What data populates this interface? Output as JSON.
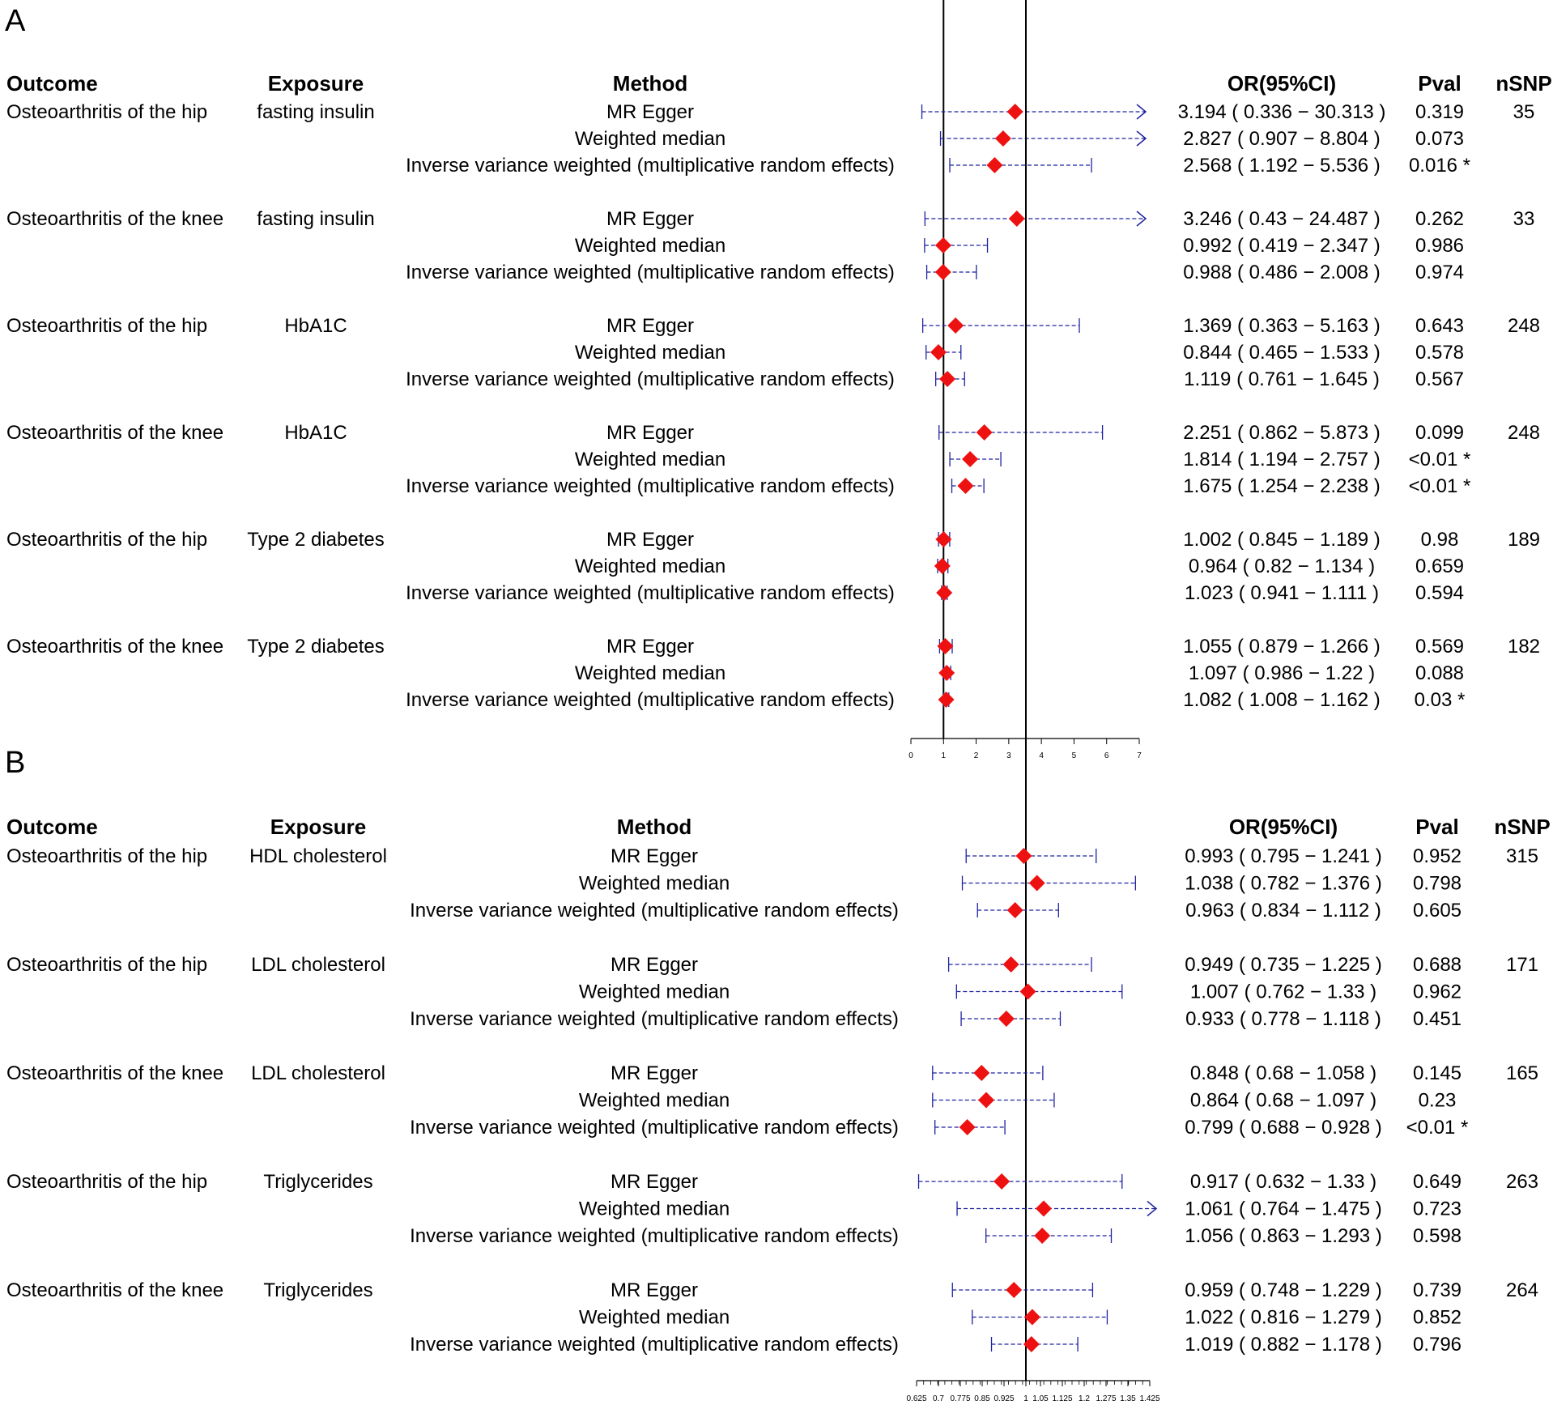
{
  "colors": {
    "marker": "#ee1111",
    "ci_line": "#1e22a0",
    "axis": "#000000"
  },
  "chart_data": [
    {
      "type": "forest",
      "panel_label": "A",
      "headers": {
        "outcome": "Outcome",
        "exposure": "Exposure",
        "method": "Method",
        "or": "OR(95%CI)",
        "pval": "Pval",
        "nsnp": "nSNP"
      },
      "axis": {
        "xlim": [
          0,
          7
        ],
        "reference_line": 1,
        "ticks": [
          0,
          1,
          2,
          3,
          4,
          5,
          6,
          7
        ],
        "tick_labels": [
          "0",
          "1",
          "2",
          "3",
          "4",
          "5",
          "6",
          "7"
        ]
      },
      "groups": [
        {
          "outcome": "Osteoarthritis of the hip",
          "exposure": "fasting insulin",
          "nsnp": "35",
          "rows": [
            {
              "method": "MR Egger",
              "or": 3.194,
              "lo": 0.336,
              "hi": 30.313,
              "ci_text": "3.194 ( 0.336 − 30.313 )",
              "pval": "0.319"
            },
            {
              "method": "Weighted median",
              "or": 2.827,
              "lo": 0.907,
              "hi": 8.804,
              "ci_text": "2.827 ( 0.907 − 8.804 )",
              "pval": "0.073"
            },
            {
              "method": "Inverse variance weighted (multiplicative random effects)",
              "or": 2.568,
              "lo": 1.192,
              "hi": 5.536,
              "ci_text": "2.568 ( 1.192 − 5.536 )",
              "pval": "0.016 *"
            }
          ]
        },
        {
          "outcome": "Osteoarthritis of the knee",
          "exposure": "fasting insulin",
          "nsnp": "33",
          "rows": [
            {
              "method": "MR Egger",
              "or": 3.246,
              "lo": 0.43,
              "hi": 24.487,
              "ci_text": "3.246 ( 0.43 − 24.487 )",
              "pval": "0.262"
            },
            {
              "method": "Weighted median",
              "or": 0.992,
              "lo": 0.419,
              "hi": 2.347,
              "ci_text": "0.992 ( 0.419 − 2.347 )",
              "pval": "0.986"
            },
            {
              "method": "Inverse variance weighted (multiplicative random effects)",
              "or": 0.988,
              "lo": 0.486,
              "hi": 2.008,
              "ci_text": "0.988 ( 0.486 − 2.008 )",
              "pval": "0.974"
            }
          ]
        },
        {
          "outcome": "Osteoarthritis of the hip",
          "exposure": "HbA1C",
          "nsnp": "248",
          "rows": [
            {
              "method": "MR Egger",
              "or": 1.369,
              "lo": 0.363,
              "hi": 5.163,
              "ci_text": "1.369 ( 0.363 − 5.163 )",
              "pval": "0.643"
            },
            {
              "method": "Weighted median",
              "or": 0.844,
              "lo": 0.465,
              "hi": 1.533,
              "ci_text": "0.844 ( 0.465 − 1.533 )",
              "pval": "0.578"
            },
            {
              "method": "Inverse variance weighted (multiplicative random effects)",
              "or": 1.119,
              "lo": 0.761,
              "hi": 1.645,
              "ci_text": "1.119 ( 0.761 − 1.645 )",
              "pval": "0.567"
            }
          ]
        },
        {
          "outcome": "Osteoarthritis of the knee",
          "exposure": "HbA1C",
          "nsnp": "248",
          "rows": [
            {
              "method": "MR Egger",
              "or": 2.251,
              "lo": 0.862,
              "hi": 5.873,
              "ci_text": "2.251 ( 0.862 − 5.873 )",
              "pval": "0.099"
            },
            {
              "method": "Weighted median",
              "or": 1.814,
              "lo": 1.194,
              "hi": 2.757,
              "ci_text": "1.814 ( 1.194 − 2.757 )",
              "pval": "<0.01 *"
            },
            {
              "method": "Inverse variance weighted (multiplicative random effects)",
              "or": 1.675,
              "lo": 1.254,
              "hi": 2.238,
              "ci_text": "1.675 ( 1.254 − 2.238 )",
              "pval": "<0.01 *"
            }
          ]
        },
        {
          "outcome": "Osteoarthritis of the hip",
          "exposure": "Type 2 diabetes",
          "nsnp": "189",
          "rows": [
            {
              "method": "MR Egger",
              "or": 1.002,
              "lo": 0.845,
              "hi": 1.189,
              "ci_text": "1.002 ( 0.845 − 1.189 )",
              "pval": "0.98"
            },
            {
              "method": "Weighted median",
              "or": 0.964,
              "lo": 0.82,
              "hi": 1.134,
              "ci_text": "0.964 ( 0.82 − 1.134 )",
              "pval": "0.659"
            },
            {
              "method": "Inverse variance weighted (multiplicative random effects)",
              "or": 1.023,
              "lo": 0.941,
              "hi": 1.111,
              "ci_text": "1.023 ( 0.941 − 1.111 )",
              "pval": "0.594"
            }
          ]
        },
        {
          "outcome": "Osteoarthritis of the knee",
          "exposure": "Type 2 diabetes",
          "nsnp": "182",
          "rows": [
            {
              "method": "MR Egger",
              "or": 1.055,
              "lo": 0.879,
              "hi": 1.266,
              "ci_text": "1.055 ( 0.879 − 1.266 )",
              "pval": "0.569"
            },
            {
              "method": "Weighted median",
              "or": 1.097,
              "lo": 0.986,
              "hi": 1.22,
              "ci_text": "1.097 ( 0.986 − 1.22 )",
              "pval": "0.088"
            },
            {
              "method": "Inverse variance weighted (multiplicative random effects)",
              "or": 1.082,
              "lo": 1.008,
              "hi": 1.162,
              "ci_text": "1.082 ( 1.008 − 1.162 )",
              "pval": "0.03 *"
            }
          ]
        }
      ]
    },
    {
      "type": "forest",
      "panel_label": "B",
      "headers": {
        "outcome": "Outcome",
        "exposure": "Exposure",
        "method": "Method",
        "or": "OR(95%CI)",
        "pval": "Pval",
        "nsnp": "nSNP"
      },
      "axis": {
        "xlim": [
          0.625,
          1.425
        ],
        "reference_line": 1,
        "ticks": [
          0.625,
          0.7,
          0.775,
          0.85,
          0.925,
          1,
          1.05,
          1.125,
          1.2,
          1.275,
          1.35,
          1.425
        ],
        "tick_labels": [
          "0.625",
          "0.7",
          "0.775",
          "0.85",
          "0.925",
          "1",
          "1.05",
          "1.125",
          "1.2",
          "1.275",
          "1.35",
          "1.425"
        ]
      },
      "groups": [
        {
          "outcome": "Osteoarthritis of the hip",
          "exposure": "HDL cholesterol",
          "nsnp": "315",
          "rows": [
            {
              "method": "MR Egger",
              "or": 0.993,
              "lo": 0.795,
              "hi": 1.241,
              "ci_text": "0.993 ( 0.795 − 1.241 )",
              "pval": "0.952"
            },
            {
              "method": "Weighted median",
              "or": 1.038,
              "lo": 0.782,
              "hi": 1.376,
              "ci_text": "1.038 ( 0.782 − 1.376 )",
              "pval": "0.798"
            },
            {
              "method": "Inverse variance weighted (multiplicative random effects)",
              "or": 0.963,
              "lo": 0.834,
              "hi": 1.112,
              "ci_text": "0.963 ( 0.834 − 1.112 )",
              "pval": "0.605"
            }
          ]
        },
        {
          "outcome": "Osteoarthritis of the hip",
          "exposure": "LDL cholesterol",
          "nsnp": "171",
          "rows": [
            {
              "method": "MR Egger",
              "or": 0.949,
              "lo": 0.735,
              "hi": 1.225,
              "ci_text": "0.949 ( 0.735 − 1.225 )",
              "pval": "0.688"
            },
            {
              "method": "Weighted median",
              "or": 1.007,
              "lo": 0.762,
              "hi": 1.33,
              "ci_text": "1.007 ( 0.762 − 1.33 )",
              "pval": "0.962"
            },
            {
              "method": "Inverse variance weighted (multiplicative random effects)",
              "or": 0.933,
              "lo": 0.778,
              "hi": 1.118,
              "ci_text": "0.933 ( 0.778 − 1.118 )",
              "pval": "0.451"
            }
          ]
        },
        {
          "outcome": "Osteoarthritis of the knee",
          "exposure": "LDL cholesterol",
          "nsnp": "165",
          "rows": [
            {
              "method": "MR Egger",
              "or": 0.848,
              "lo": 0.68,
              "hi": 1.058,
              "ci_text": "0.848 ( 0.68 − 1.058 )",
              "pval": "0.145"
            },
            {
              "method": "Weighted median",
              "or": 0.864,
              "lo": 0.68,
              "hi": 1.097,
              "ci_text": "0.864 ( 0.68 − 1.097 )",
              "pval": "0.23"
            },
            {
              "method": "Inverse variance weighted (multiplicative random effects)",
              "or": 0.799,
              "lo": 0.688,
              "hi": 0.928,
              "ci_text": "0.799 ( 0.688 − 0.928 )",
              "pval": "<0.01 *"
            }
          ]
        },
        {
          "outcome": "Osteoarthritis of the hip",
          "exposure": "Triglycerides",
          "nsnp": "263",
          "rows": [
            {
              "method": "MR Egger",
              "or": 0.917,
              "lo": 0.632,
              "hi": 1.33,
              "ci_text": "0.917 ( 0.632 − 1.33 )",
              "pval": "0.649"
            },
            {
              "method": "Weighted median",
              "or": 1.061,
              "lo": 0.764,
              "hi": 1.475,
              "ci_text": "1.061 ( 0.764 − 1.475 )",
              "pval": "0.723"
            },
            {
              "method": "Inverse variance weighted (multiplicative random effects)",
              "or": 1.056,
              "lo": 0.863,
              "hi": 1.293,
              "ci_text": "1.056 ( 0.863 − 1.293 )",
              "pval": "0.598"
            }
          ]
        },
        {
          "outcome": "Osteoarthritis of the knee",
          "exposure": "Triglycerides",
          "nsnp": "264",
          "rows": [
            {
              "method": "MR Egger",
              "or": 0.959,
              "lo": 0.748,
              "hi": 1.229,
              "ci_text": "0.959 ( 0.748 − 1.229 )",
              "pval": "0.739"
            },
            {
              "method": "Weighted median",
              "or": 1.022,
              "lo": 0.816,
              "hi": 1.279,
              "ci_text": "1.022 ( 0.816 − 1.279 )",
              "pval": "0.852"
            },
            {
              "method": "Inverse variance weighted (multiplicative random effects)",
              "or": 1.019,
              "lo": 0.882,
              "hi": 1.178,
              "ci_text": "1.019 ( 0.882 − 1.178 )",
              "pval": "0.796"
            }
          ]
        }
      ]
    }
  ]
}
